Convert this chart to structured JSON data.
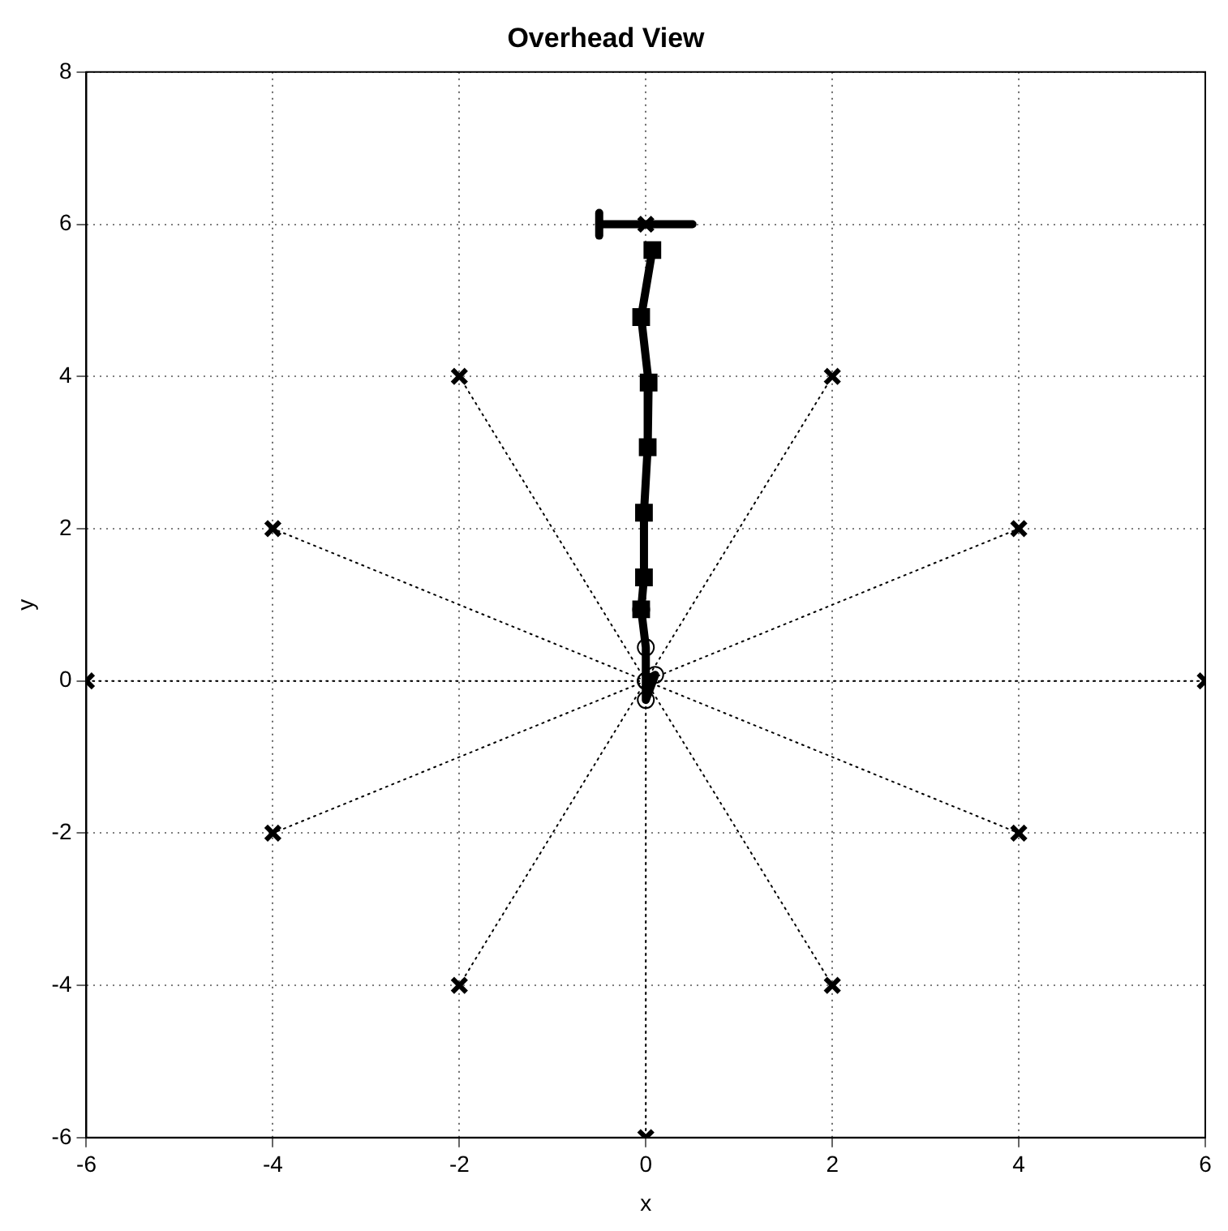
{
  "chart_data": {
    "type": "line",
    "title": "Overhead View",
    "xlabel": "x",
    "ylabel": "y",
    "xlim": [
      -6,
      6
    ],
    "ylim": [
      -6,
      8
    ],
    "xticks": [
      -6,
      -4,
      -2,
      0,
      2,
      4,
      6
    ],
    "yticks": [
      -6,
      -4,
      -2,
      0,
      2,
      4,
      6,
      8
    ],
    "grid": true,
    "legend": false,
    "series": [
      {
        "type": "line",
        "line_style": "dotted",
        "color": "#000000",
        "x": [
          0,
          2
        ],
        "values": [
          0,
          4
        ]
      },
      {
        "type": "line",
        "line_style": "dotted",
        "color": "#000000",
        "x": [
          0,
          4
        ],
        "values": [
          0,
          2
        ]
      },
      {
        "type": "line",
        "line_style": "dotted",
        "color": "#000000",
        "x": [
          0,
          6
        ],
        "values": [
          0,
          0
        ]
      },
      {
        "type": "line",
        "line_style": "dotted",
        "color": "#000000",
        "x": [
          0,
          4
        ],
        "values": [
          0,
          -2
        ]
      },
      {
        "type": "line",
        "line_style": "dotted",
        "color": "#000000",
        "x": [
          0,
          2
        ],
        "values": [
          0,
          -4
        ]
      },
      {
        "type": "line",
        "line_style": "dotted",
        "color": "#000000",
        "x": [
          0,
          0
        ],
        "values": [
          0,
          -6
        ]
      },
      {
        "type": "line",
        "line_style": "dotted",
        "color": "#000000",
        "x": [
          0,
          -2
        ],
        "values": [
          0,
          -4
        ]
      },
      {
        "type": "line",
        "line_style": "dotted",
        "color": "#000000",
        "x": [
          0,
          -4
        ],
        "values": [
          0,
          -2
        ]
      },
      {
        "type": "line",
        "line_style": "dotted",
        "color": "#000000",
        "x": [
          0,
          -6
        ],
        "values": [
          0,
          0
        ]
      },
      {
        "type": "line",
        "line_style": "dotted",
        "color": "#000000",
        "x": [
          0,
          -4
        ],
        "values": [
          0,
          2
        ]
      },
      {
        "type": "line",
        "line_style": "dotted",
        "color": "#000000",
        "x": [
          0,
          -2
        ],
        "values": [
          0,
          4
        ]
      },
      {
        "type": "scatter",
        "marker": "cross",
        "color": "#000000",
        "x": [
          0,
          2,
          4,
          6,
          4,
          2,
          0,
          -2,
          -4,
          -6,
          -4,
          -2
        ],
        "values": [
          6,
          4,
          2,
          0,
          -2,
          -4,
          -6,
          -4,
          -2,
          0,
          2,
          4
        ]
      },
      {
        "type": "line",
        "line_style": "solid",
        "color": "#000000",
        "x": [
          -0.5,
          -0.5
        ],
        "values": [
          5.85,
          6.15
        ]
      },
      {
        "type": "line",
        "line_style": "solid",
        "color": "#000000",
        "x": [
          -0.5,
          0.5
        ],
        "values": [
          6,
          6
        ]
      },
      {
        "line_style": "solid",
        "marker": "square",
        "color": "#000000",
        "x": [
          0.07,
          -0.05,
          0.03,
          0.02,
          -0.02,
          -0.02,
          -0.05
        ],
        "values": [
          5.66,
          4.78,
          3.92,
          3.07,
          2.21,
          1.36,
          0.94
        ]
      },
      {
        "line_style": "solid",
        "marker": "circle",
        "color": "#000000",
        "x": [
          -0.05,
          0,
          0,
          0.1,
          0,
          0
        ],
        "values": [
          0.94,
          0.44,
          0,
          0.08,
          -0.25,
          0
        ]
      }
    ]
  }
}
